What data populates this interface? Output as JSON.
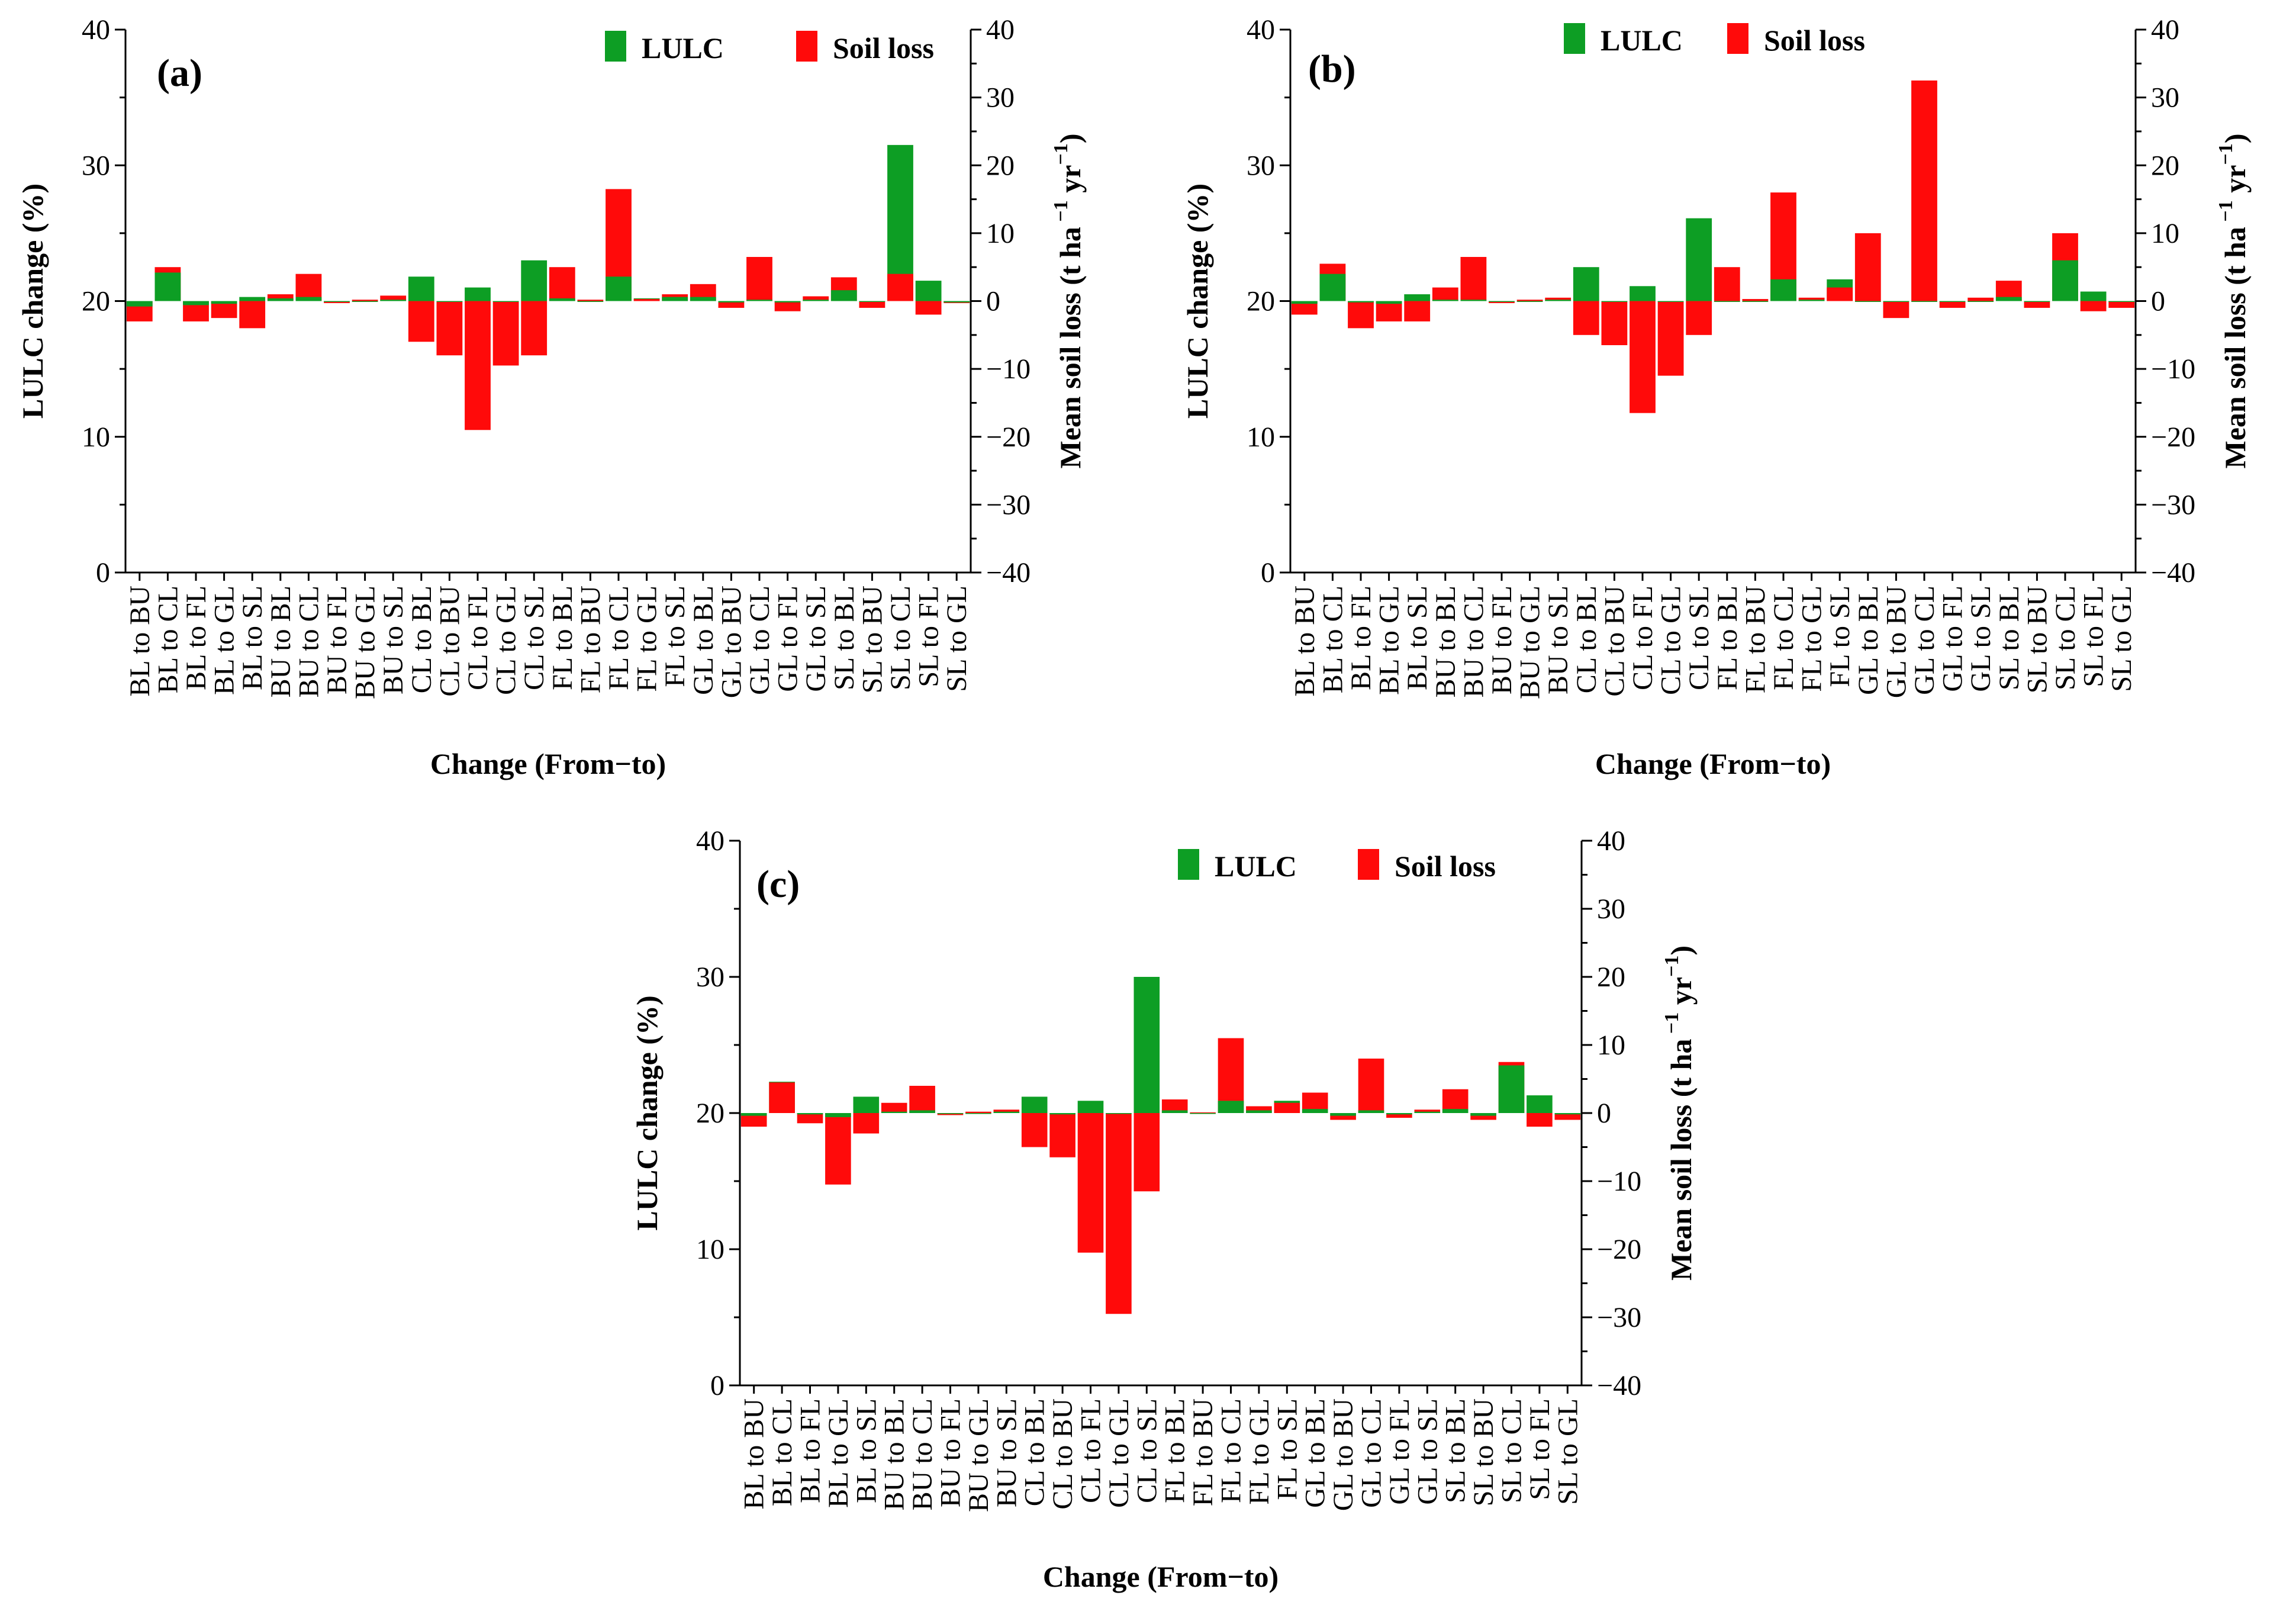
{
  "colors": {
    "lulc": "#0d9e24",
    "soil_loss": "#ff0a0a",
    "axis": "#000000"
  },
  "chart_data": [
    {
      "type": "bar",
      "panel": "(a)",
      "legend": [
        "LULC",
        "Soil loss"
      ],
      "xlabel": "Change (From−to)",
      "ylabel_left": "LULC change (%)",
      "ylabel_right": {
        "main": "Mean soil loss (t ha",
        "sup1": "−1",
        "mid": " yr",
        "sup2": "−1",
        "close": ")"
      },
      "ylim_left": [
        0,
        40
      ],
      "yticks_left": [
        "0",
        "10",
        "20",
        "30",
        "40"
      ],
      "ylim_right": [
        -40,
        40
      ],
      "yticks_right": [
        "−40",
        "−30",
        "−20",
        "−10",
        "0",
        "10",
        "20",
        "30",
        "40"
      ],
      "categories": [
        "BL to BU",
        "BL to CL",
        "BL to FL",
        "BL to GL",
        "BL to SL",
        "BU to BL",
        "BU to CL",
        "BU to FL",
        "BU to GL",
        "BU to SL",
        "CL to BL",
        "CL to BU",
        "CL to FL",
        "CL to GL",
        "CL to SL",
        "FL to BL",
        "FL to BU",
        "FL to CL",
        "FL to GL",
        "FL to SL",
        "GL to BL",
        "GL to BU",
        "GL to CL",
        "GL to FL",
        "GL to SL",
        "SL to BL",
        "SL to BU",
        "SL to CL",
        "SL to FL",
        "SL to GL"
      ],
      "series": [
        {
          "name": "LULC",
          "values": [
            19.6,
            22.1,
            19.7,
            19.8,
            20.3,
            20.2,
            20.3,
            20.0,
            20.0,
            20.1,
            21.8,
            20.0,
            21.0,
            20.0,
            23.0,
            20.2,
            20.0,
            21.8,
            20.2,
            20.3,
            20.3,
            19.9,
            20.1,
            19.9,
            20.1,
            20.8,
            20.0,
            31.5,
            21.5,
            19.9
          ]
        },
        {
          "name": "Soil loss",
          "values": [
            -3,
            5,
            -3,
            -2.5,
            -4,
            1,
            4,
            -0.3,
            0.2,
            0.8,
            -6,
            -8,
            -19,
            -9.5,
            -8,
            5,
            0.2,
            16.5,
            0.3,
            1,
            2.5,
            -1,
            6.5,
            -1.5,
            0.7,
            3.5,
            -1,
            4,
            -2,
            -0.3
          ]
        }
      ]
    },
    {
      "type": "bar",
      "panel": "(b)",
      "legend": [
        "LULC",
        "Soil loss"
      ],
      "xlabel": "Change (From−to)",
      "ylabel_left": "LULC change (%)",
      "ylabel_right": {
        "main": "Mean soil loss (t ha",
        "sup1": "−1",
        "mid": " yr",
        "sup2": "−1",
        "close": ")"
      },
      "ylim_left": [
        0,
        40
      ],
      "yticks_left": [
        "0",
        "10",
        "20",
        "30",
        "40"
      ],
      "ylim_right": [
        -40,
        40
      ],
      "yticks_right": [
        "−40",
        "−30",
        "−20",
        "−10",
        "0",
        "10",
        "20",
        "30",
        "40"
      ],
      "categories": [
        "BL to BU",
        "BL to CL",
        "BL to FL",
        "BL to GL",
        "BL to SL",
        "BU to BL",
        "BU to CL",
        "BU to FL",
        "BU to GL",
        "BU to SL",
        "CL to BL",
        "CL to BU",
        "CL to FL",
        "CL to GL",
        "CL to SL",
        "FL to BL",
        "FL to BU",
        "FL to CL",
        "FL to GL",
        "FL to SL",
        "GL to BL",
        "GL to BU",
        "GL to CL",
        "GL to FL",
        "GL to SL",
        "SL to BL",
        "SL to BU",
        "SL to CL",
        "SL to FL",
        "SL to GL"
      ],
      "series": [
        {
          "name": "LULC",
          "values": [
            19.8,
            22.0,
            19.9,
            19.8,
            20.5,
            20.1,
            20.1,
            20.0,
            20.0,
            20.1,
            22.5,
            20.0,
            21.1,
            20.0,
            26.1,
            20.0,
            20.0,
            21.6,
            20.1,
            21.6,
            20.0,
            20.0,
            20.0,
            20.0,
            20.0,
            20.3,
            20.0,
            23.0,
            20.7,
            20.0
          ]
        },
        {
          "name": "Soil loss",
          "values": [
            -2,
            5.5,
            -4,
            -3,
            -3,
            2,
            6.5,
            -0.3,
            0.2,
            0.5,
            -5,
            -6.5,
            -16.5,
            -11,
            -5,
            5,
            0.3,
            16,
            0.5,
            2,
            10,
            -2.5,
            32.5,
            -1,
            0.5,
            3,
            -1,
            10,
            -1.5,
            -1
          ]
        }
      ]
    },
    {
      "type": "bar",
      "panel": "(c)",
      "legend": [
        "LULC",
        "Soil loss"
      ],
      "xlabel": "Change (From−to)",
      "ylabel_left": "LULC change (%)",
      "ylabel_right": {
        "main": "Mean soil loss (t ha",
        "sup1": "−1",
        "mid": " yr",
        "sup2": "−1",
        "close": ")"
      },
      "ylim_left": [
        0,
        40
      ],
      "yticks_left": [
        "0",
        "10",
        "20",
        "30",
        "40"
      ],
      "ylim_right": [
        -40,
        40
      ],
      "yticks_right": [
        "−40",
        "−30",
        "−20",
        "−10",
        "0",
        "10",
        "20",
        "30",
        "40"
      ],
      "categories": [
        "BL to BU",
        "BL to CL",
        "BL to FL",
        "BL to GL",
        "BL to SL",
        "BU to BL",
        "BU to CL",
        "BU to FL",
        "BU to GL",
        "BU to SL",
        "CL to BL",
        "CL to BU",
        "CL to FL",
        "CL to GL",
        "CL to SL",
        "FL to BL",
        "FL to BU",
        "FL to CL",
        "FL to GL",
        "FL to SL",
        "GL to BL",
        "GL to BU",
        "GL to CL",
        "GL to FL",
        "GL to SL",
        "SL to BL",
        "SL to BU",
        "SL to CL",
        "SL to FL",
        "SL to GL"
      ],
      "series": [
        {
          "name": "LULC",
          "values": [
            19.8,
            22.3,
            19.9,
            19.7,
            21.2,
            20.1,
            20.2,
            20.0,
            20.0,
            20.1,
            21.2,
            19.9,
            20.9,
            20.0,
            30.0,
            20.2,
            20.0,
            20.9,
            20.2,
            20.9,
            20.3,
            19.8,
            20.2,
            19.9,
            20.1,
            20.3,
            19.8,
            23.5,
            21.3,
            19.9
          ]
        },
        {
          "name": "Soil loss",
          "values": [
            -2,
            4.5,
            -1.5,
            -10.5,
            -3,
            1.5,
            4,
            -0.3,
            0.2,
            0.5,
            -5,
            -6.5,
            -20.5,
            -29.5,
            -11.5,
            2,
            0.1,
            11,
            1,
            1.5,
            3,
            -1,
            8,
            -0.7,
            0.5,
            3.5,
            -1,
            7.5,
            -2,
            -1
          ]
        }
      ]
    }
  ]
}
